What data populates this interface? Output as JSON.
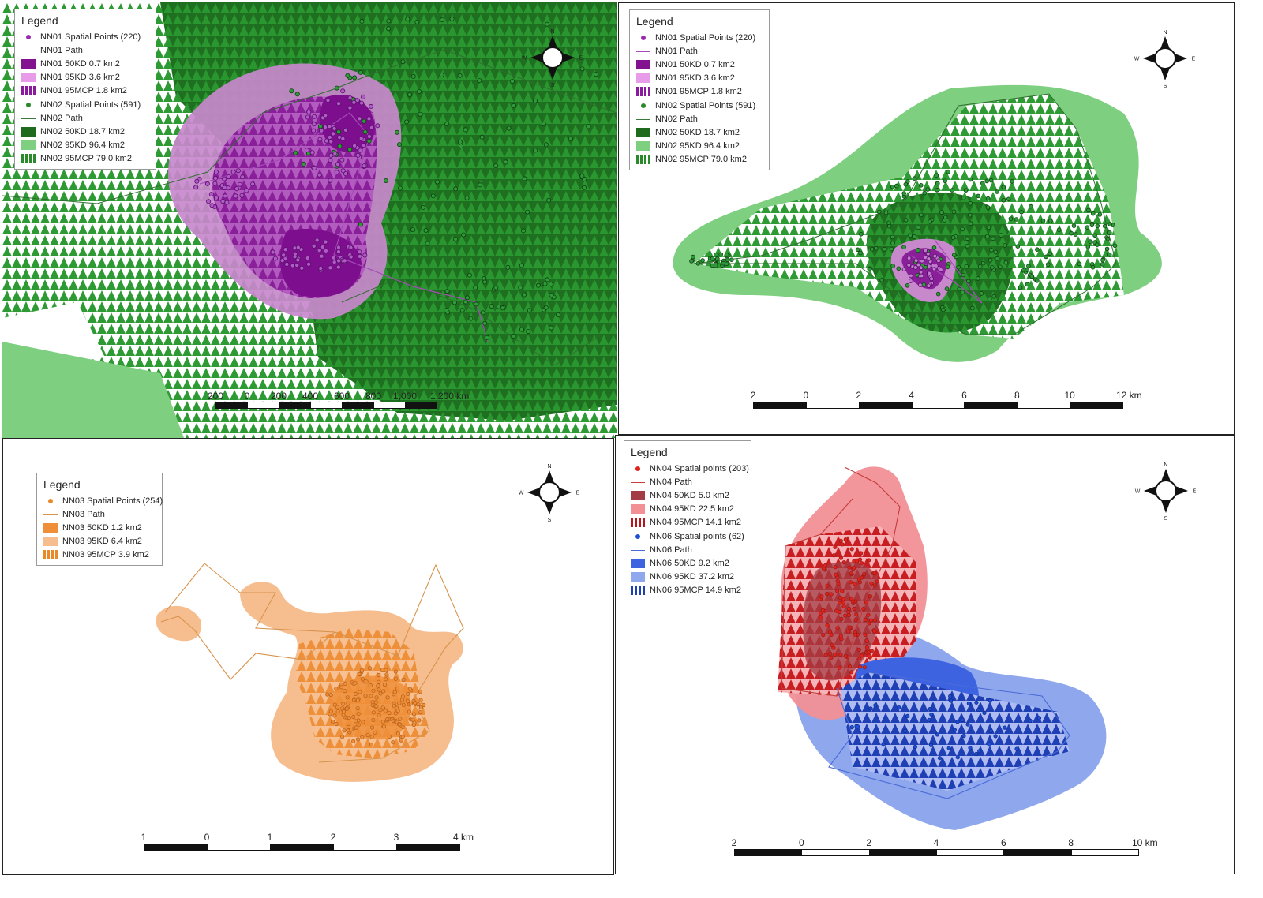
{
  "panels": [
    {
      "id": "p1",
      "legend": {
        "title": "Legend",
        "items": [
          {
            "type": "point",
            "color": "#9a2bb0",
            "label": "NN01 Spatial Points (220)"
          },
          {
            "type": "path",
            "color": "#a54bb8",
            "label": "NN01 Path"
          },
          {
            "type": "fill",
            "color": "#82128f",
            "label": "NN01 50KD 0.7 km2"
          },
          {
            "type": "fill",
            "color": "#e79be8",
            "label": "NN01 95KD 3.6 km2"
          },
          {
            "type": "mcp",
            "color": "#8a1a9e",
            "label": "NN01 95MCP 1.8 km2"
          },
          {
            "type": "point",
            "color": "#2b8a2b",
            "label": "NN02 Spatial Points (591)"
          },
          {
            "type": "path",
            "color": "#3a7a3a",
            "label": "NN02 Path"
          },
          {
            "type": "fill",
            "color": "#1e6a1e",
            "label": "NN02 50KD 18.7 km2"
          },
          {
            "type": "fill",
            "color": "#7fcf80",
            "label": "NN02 95KD 96.4 km2"
          },
          {
            "type": "mcp",
            "color": "#2a8a2a",
            "label": "NN02 95MCP 79.0 km2"
          }
        ]
      },
      "compass": {
        "n": "N",
        "s": "S",
        "e": "E",
        "w": "W"
      },
      "scalebar": {
        "labels": [
          "200",
          "0",
          "200",
          "400",
          "600",
          "800",
          "1,000",
          "1,200 km"
        ]
      }
    },
    {
      "id": "p2",
      "legend": {
        "title": "Legend",
        "items": [
          {
            "type": "point",
            "color": "#9a2bb0",
            "label": "NN01 Spatial Points (220)"
          },
          {
            "type": "path",
            "color": "#a54bb8",
            "label": "NN01 Path"
          },
          {
            "type": "fill",
            "color": "#82128f",
            "label": "NN01 50KD 0.7 km2"
          },
          {
            "type": "fill",
            "color": "#e79be8",
            "label": "NN01 95KD 3.6 km2"
          },
          {
            "type": "mcp",
            "color": "#8a1a9e",
            "label": "NN01 95MCP 1.8 km2"
          },
          {
            "type": "point",
            "color": "#2b8a2b",
            "label": "NN02 Spatial Points (591)"
          },
          {
            "type": "path",
            "color": "#3a7a3a",
            "label": "NN02 Path"
          },
          {
            "type": "fill",
            "color": "#1e6a1e",
            "label": "NN02 50KD 18.7 km2"
          },
          {
            "type": "fill",
            "color": "#7fcf80",
            "label": "NN02 95KD 96.4 km2"
          },
          {
            "type": "mcp",
            "color": "#2a8a2a",
            "label": "NN02 95MCP 79.0 km2"
          }
        ]
      },
      "compass": {
        "n": "N",
        "s": "S",
        "e": "E",
        "w": "W"
      },
      "scalebar": {
        "labels": [
          "2",
          "0",
          "2",
          "4",
          "6",
          "8",
          "10",
          "12 km"
        ]
      }
    },
    {
      "id": "p3",
      "legend": {
        "title": "Legend",
        "items": [
          {
            "type": "point",
            "color": "#e88a2a",
            "label": "NN03 Spatial Points (254)"
          },
          {
            "type": "path",
            "color": "#d7934d",
            "label": "NN03 Path"
          },
          {
            "type": "fill",
            "color": "#ee8f3a",
            "label": "NN03 50KD 1.2 km2"
          },
          {
            "type": "fill",
            "color": "#f6bd8e",
            "label": "NN03 95KD 6.4 km2"
          },
          {
            "type": "mcp",
            "color": "#e88a2a",
            "label": "NN03 95MCP 3.9 km2"
          }
        ]
      },
      "compass": {
        "n": "N",
        "s": "S",
        "e": "E",
        "w": "W"
      },
      "scalebar": {
        "labels": [
          "1",
          "0",
          "1",
          "2",
          "3",
          "4 km"
        ]
      }
    },
    {
      "id": "p4",
      "legend": {
        "title": "Legend",
        "items": [
          {
            "type": "point",
            "color": "#e2231a",
            "label": "NN04 Spatial points (203)"
          },
          {
            "type": "path",
            "color": "#c43c3c",
            "label": "NN04 Path"
          },
          {
            "type": "fill",
            "color": "#a33c44",
            "label": "NN04 50KD 5.0 km2"
          },
          {
            "type": "fill",
            "color": "#f29096",
            "label": "NN04 95KD 22.5 km2"
          },
          {
            "type": "mcp",
            "color": "#b8141c",
            "label": "NN04 95MCP 14.1 km2"
          },
          {
            "type": "point",
            "color": "#1f4ed8",
            "label": "NN06 Spatial points (62)"
          },
          {
            "type": "path",
            "color": "#4a6ad6",
            "label": "NN06 Path"
          },
          {
            "type": "fill",
            "color": "#3d63e0",
            "label": "NN06 50KD 9.2 km2"
          },
          {
            "type": "fill",
            "color": "#8fa7ec",
            "label": "NN06 95KD 37.2 km2"
          },
          {
            "type": "mcp",
            "color": "#1f3fb5",
            "label": "NN06 95MCP 14.9 km2"
          }
        ]
      },
      "compass": {
        "n": "N",
        "s": "S",
        "e": "E",
        "w": "W"
      },
      "scalebar": {
        "labels": [
          "2",
          "0",
          "2",
          "4",
          "6",
          "8",
          "10 km"
        ]
      }
    }
  ]
}
